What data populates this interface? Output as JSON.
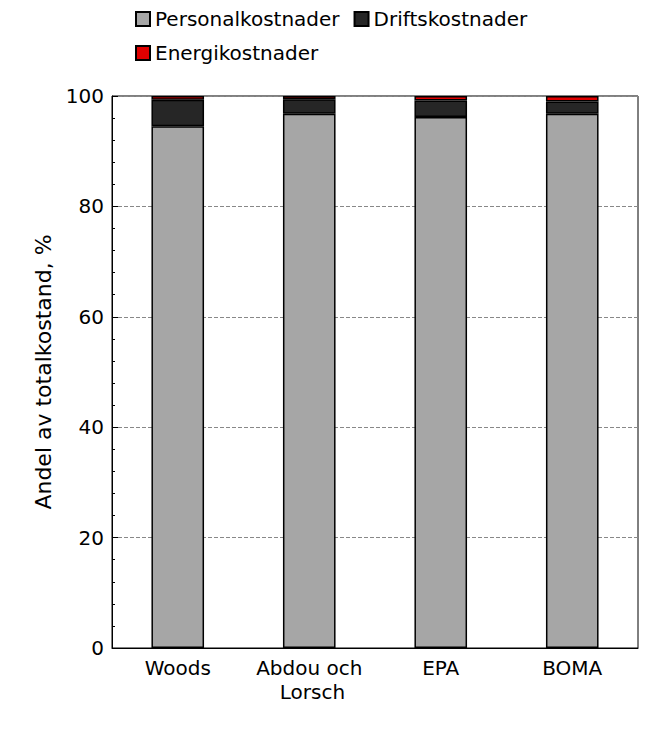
{
  "chart_data": {
    "type": "bar",
    "categories": [
      "Woods",
      "Abdou och Lorsch",
      "EPA",
      "BOMA"
    ],
    "series": [
      {
        "name": "Personalkostnader",
        "color": "#a6a6a6",
        "values": [
          94.5,
          96.8,
          96.2,
          96.8
        ]
      },
      {
        "name": "Driftskostnader",
        "color": "#262626",
        "values": [
          4.8,
          2.6,
          3.0,
          2.2
        ]
      },
      {
        "name": "Energikostnader",
        "color": "#e00000",
        "values": [
          0.7,
          0.6,
          0.8,
          1.0
        ]
      }
    ],
    "ylabel": "Andel av totalkostand, %",
    "ylim": [
      0,
      100
    ],
    "yticks": [
      0,
      20,
      40,
      60,
      80,
      100
    ],
    "stacked": true,
    "grid": true,
    "legend": "upper left"
  }
}
